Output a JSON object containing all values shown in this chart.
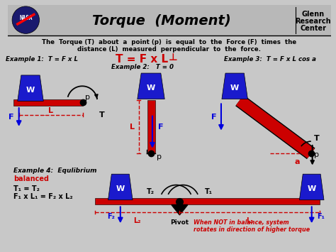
{
  "title": "Torque  (Moment)",
  "bg_color": "#c8c8c8",
  "header_bg": "#b8b8b8",
  "description_line1": "The  Torque (T)  about  a  point (p)  is  equal  to  the  Force (F)  times  the",
  "description_line2": "distance (L)  measured  perpendicular  to  the  force.",
  "ex1_label": "Example 1:  T = F x L",
  "ex2_label": "Example 2:   T = 0",
  "ex3_label": "Example 3:  T = F x L cos a",
  "ex4_label": "Example 4:  Equlibrium",
  "ex4_sub": "balanced",
  "eq1": "T₁ = T₂",
  "eq2": "F₁ x L₁ = F₂ x L₂",
  "pivot_label": "Pivot",
  "balance_note": "When NOT in balance, system\nrotates in direction of higher torque",
  "blue_weight": "#1a1acc",
  "red_bar": "#cc0000",
  "blue_arrow": "#0000dd",
  "red_dashed": "#cc0000",
  "black": "#000000",
  "white": "#ffffff",
  "title_color": "#000000",
  "formula_color": "#cc0000",
  "ex4_sub_color": "#cc0000",
  "balance_note_color": "#cc0000"
}
